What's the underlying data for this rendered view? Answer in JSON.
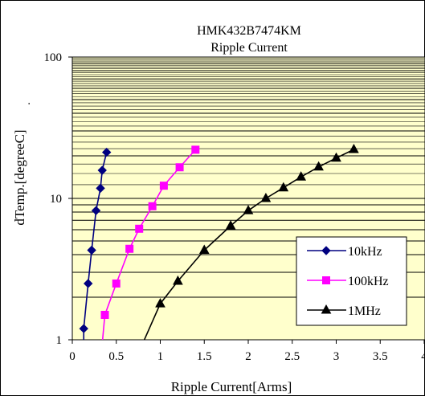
{
  "chart_data": {
    "type": "line",
    "title": "HMK432B7474KM",
    "subtitle": "Ripple Current",
    "xlabel": "Ripple Current[Arms]",
    "ylabel": "dTemp.[degreeC]",
    "ylabel_suffix": ".",
    "xlim": [
      0,
      4
    ],
    "ylim": [
      1,
      100
    ],
    "yscale": "log",
    "grid": true,
    "legend_position": "right",
    "x_ticks": [
      "0",
      "0.5",
      "1",
      "1.5",
      "2",
      "2.5",
      "3",
      "3.5",
      "4"
    ],
    "y_ticks": [
      "1",
      "10",
      "100"
    ],
    "series": [
      {
        "name": "10kHz",
        "color": "#000080",
        "marker": "diamond",
        "x": [
          0.13,
          0.13,
          0.18,
          0.22,
          0.27,
          0.32,
          0.34,
          0.39
        ],
        "y": [
          0.8,
          1.2,
          2.5,
          4.3,
          8.2,
          11.8,
          15.8,
          21.2
        ]
      },
      {
        "name": "100kHz",
        "color": "#ff00ff",
        "marker": "square",
        "x": [
          0.33,
          0.37,
          0.5,
          0.65,
          0.76,
          0.91,
          1.04,
          1.22,
          1.4
        ],
        "y": [
          0.8,
          1.5,
          2.5,
          4.4,
          6.1,
          8.8,
          12.3,
          16.6,
          22.1
        ]
      },
      {
        "name": "1MHz",
        "color": "#000000",
        "marker": "triangle",
        "x": [
          0.75,
          1.0,
          1.2,
          1.5,
          1.8,
          2.0,
          2.2,
          2.4,
          2.6,
          2.8,
          3.0,
          3.2
        ],
        "y": [
          0.8,
          1.8,
          2.6,
          4.3,
          6.4,
          8.2,
          10.0,
          11.9,
          14.2,
          16.7,
          19.3,
          22.2
        ]
      }
    ]
  }
}
